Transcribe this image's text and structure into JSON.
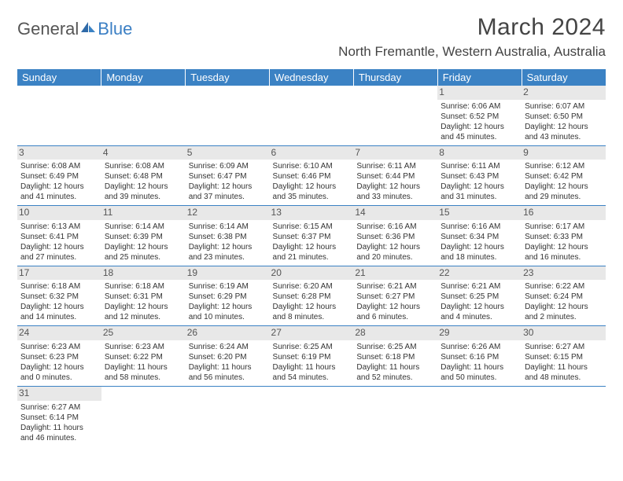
{
  "brand": {
    "part1": "General",
    "part2": "Blue"
  },
  "title": "March 2024",
  "location": "North Fremantle, Western Australia, Australia",
  "headers": [
    "Sunday",
    "Monday",
    "Tuesday",
    "Wednesday",
    "Thursday",
    "Friday",
    "Saturday"
  ],
  "colors": {
    "header_bg": "#3b82c4",
    "header_text": "#ffffff",
    "daynum_bg": "#e8e8e8",
    "border": "#3b82c4",
    "text": "#333333",
    "brand_gray": "#555555",
    "brand_blue": "#3b7fc4"
  },
  "typography": {
    "title_fontsize": 30,
    "location_fontsize": 17,
    "header_fontsize": 13,
    "cell_fontsize": 10,
    "daynum_fontsize": 12
  },
  "weeks": [
    [
      null,
      null,
      null,
      null,
      null,
      {
        "n": "1",
        "sunrise": "Sunrise: 6:06 AM",
        "sunset": "Sunset: 6:52 PM",
        "day1": "Daylight: 12 hours",
        "day2": "and 45 minutes."
      },
      {
        "n": "2",
        "sunrise": "Sunrise: 6:07 AM",
        "sunset": "Sunset: 6:50 PM",
        "day1": "Daylight: 12 hours",
        "day2": "and 43 minutes."
      }
    ],
    [
      {
        "n": "3",
        "sunrise": "Sunrise: 6:08 AM",
        "sunset": "Sunset: 6:49 PM",
        "day1": "Daylight: 12 hours",
        "day2": "and 41 minutes."
      },
      {
        "n": "4",
        "sunrise": "Sunrise: 6:08 AM",
        "sunset": "Sunset: 6:48 PM",
        "day1": "Daylight: 12 hours",
        "day2": "and 39 minutes."
      },
      {
        "n": "5",
        "sunrise": "Sunrise: 6:09 AM",
        "sunset": "Sunset: 6:47 PM",
        "day1": "Daylight: 12 hours",
        "day2": "and 37 minutes."
      },
      {
        "n": "6",
        "sunrise": "Sunrise: 6:10 AM",
        "sunset": "Sunset: 6:46 PM",
        "day1": "Daylight: 12 hours",
        "day2": "and 35 minutes."
      },
      {
        "n": "7",
        "sunrise": "Sunrise: 6:11 AM",
        "sunset": "Sunset: 6:44 PM",
        "day1": "Daylight: 12 hours",
        "day2": "and 33 minutes."
      },
      {
        "n": "8",
        "sunrise": "Sunrise: 6:11 AM",
        "sunset": "Sunset: 6:43 PM",
        "day1": "Daylight: 12 hours",
        "day2": "and 31 minutes."
      },
      {
        "n": "9",
        "sunrise": "Sunrise: 6:12 AM",
        "sunset": "Sunset: 6:42 PM",
        "day1": "Daylight: 12 hours",
        "day2": "and 29 minutes."
      }
    ],
    [
      {
        "n": "10",
        "sunrise": "Sunrise: 6:13 AM",
        "sunset": "Sunset: 6:41 PM",
        "day1": "Daylight: 12 hours",
        "day2": "and 27 minutes."
      },
      {
        "n": "11",
        "sunrise": "Sunrise: 6:14 AM",
        "sunset": "Sunset: 6:39 PM",
        "day1": "Daylight: 12 hours",
        "day2": "and 25 minutes."
      },
      {
        "n": "12",
        "sunrise": "Sunrise: 6:14 AM",
        "sunset": "Sunset: 6:38 PM",
        "day1": "Daylight: 12 hours",
        "day2": "and 23 minutes."
      },
      {
        "n": "13",
        "sunrise": "Sunrise: 6:15 AM",
        "sunset": "Sunset: 6:37 PM",
        "day1": "Daylight: 12 hours",
        "day2": "and 21 minutes."
      },
      {
        "n": "14",
        "sunrise": "Sunrise: 6:16 AM",
        "sunset": "Sunset: 6:36 PM",
        "day1": "Daylight: 12 hours",
        "day2": "and 20 minutes."
      },
      {
        "n": "15",
        "sunrise": "Sunrise: 6:16 AM",
        "sunset": "Sunset: 6:34 PM",
        "day1": "Daylight: 12 hours",
        "day2": "and 18 minutes."
      },
      {
        "n": "16",
        "sunrise": "Sunrise: 6:17 AM",
        "sunset": "Sunset: 6:33 PM",
        "day1": "Daylight: 12 hours",
        "day2": "and 16 minutes."
      }
    ],
    [
      {
        "n": "17",
        "sunrise": "Sunrise: 6:18 AM",
        "sunset": "Sunset: 6:32 PM",
        "day1": "Daylight: 12 hours",
        "day2": "and 14 minutes."
      },
      {
        "n": "18",
        "sunrise": "Sunrise: 6:18 AM",
        "sunset": "Sunset: 6:31 PM",
        "day1": "Daylight: 12 hours",
        "day2": "and 12 minutes."
      },
      {
        "n": "19",
        "sunrise": "Sunrise: 6:19 AM",
        "sunset": "Sunset: 6:29 PM",
        "day1": "Daylight: 12 hours",
        "day2": "and 10 minutes."
      },
      {
        "n": "20",
        "sunrise": "Sunrise: 6:20 AM",
        "sunset": "Sunset: 6:28 PM",
        "day1": "Daylight: 12 hours",
        "day2": "and 8 minutes."
      },
      {
        "n": "21",
        "sunrise": "Sunrise: 6:21 AM",
        "sunset": "Sunset: 6:27 PM",
        "day1": "Daylight: 12 hours",
        "day2": "and 6 minutes."
      },
      {
        "n": "22",
        "sunrise": "Sunrise: 6:21 AM",
        "sunset": "Sunset: 6:25 PM",
        "day1": "Daylight: 12 hours",
        "day2": "and 4 minutes."
      },
      {
        "n": "23",
        "sunrise": "Sunrise: 6:22 AM",
        "sunset": "Sunset: 6:24 PM",
        "day1": "Daylight: 12 hours",
        "day2": "and 2 minutes."
      }
    ],
    [
      {
        "n": "24",
        "sunrise": "Sunrise: 6:23 AM",
        "sunset": "Sunset: 6:23 PM",
        "day1": "Daylight: 12 hours",
        "day2": "and 0 minutes."
      },
      {
        "n": "25",
        "sunrise": "Sunrise: 6:23 AM",
        "sunset": "Sunset: 6:22 PM",
        "day1": "Daylight: 11 hours",
        "day2": "and 58 minutes."
      },
      {
        "n": "26",
        "sunrise": "Sunrise: 6:24 AM",
        "sunset": "Sunset: 6:20 PM",
        "day1": "Daylight: 11 hours",
        "day2": "and 56 minutes."
      },
      {
        "n": "27",
        "sunrise": "Sunrise: 6:25 AM",
        "sunset": "Sunset: 6:19 PM",
        "day1": "Daylight: 11 hours",
        "day2": "and 54 minutes."
      },
      {
        "n": "28",
        "sunrise": "Sunrise: 6:25 AM",
        "sunset": "Sunset: 6:18 PM",
        "day1": "Daylight: 11 hours",
        "day2": "and 52 minutes."
      },
      {
        "n": "29",
        "sunrise": "Sunrise: 6:26 AM",
        "sunset": "Sunset: 6:16 PM",
        "day1": "Daylight: 11 hours",
        "day2": "and 50 minutes."
      },
      {
        "n": "30",
        "sunrise": "Sunrise: 6:27 AM",
        "sunset": "Sunset: 6:15 PM",
        "day1": "Daylight: 11 hours",
        "day2": "and 48 minutes."
      }
    ],
    [
      {
        "n": "31",
        "sunrise": "Sunrise: 6:27 AM",
        "sunset": "Sunset: 6:14 PM",
        "day1": "Daylight: 11 hours",
        "day2": "and 46 minutes."
      },
      null,
      null,
      null,
      null,
      null,
      null
    ]
  ]
}
